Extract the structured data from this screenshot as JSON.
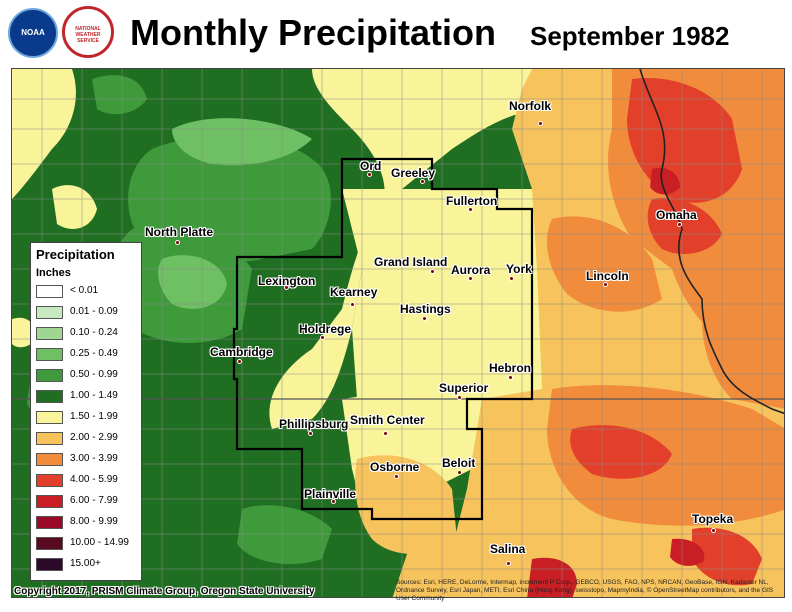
{
  "header": {
    "title": "Monthly Precipitation",
    "subtitle": "September 1982",
    "noaa_logo_text": "NOAA",
    "nws_logo_text": "NATIONAL WEATHER SERVICE"
  },
  "legend": {
    "title": "Precipitation",
    "units": "Inches",
    "items": [
      {
        "label": "< 0.01",
        "color": "#ffffff"
      },
      {
        "label": "0.01 - 0.09",
        "color": "#c8e8c0"
      },
      {
        "label": "0.10 - 0.24",
        "color": "#9fd692"
      },
      {
        "label": "0.25 - 0.49",
        "color": "#6fbf64"
      },
      {
        "label": "0.50 - 0.99",
        "color": "#3e9a3a"
      },
      {
        "label": "1.00 - 1.49",
        "color": "#1f6e22"
      },
      {
        "label": "1.50 - 1.99",
        "color": "#f9f49a"
      },
      {
        "label": "2.00 - 2.99",
        "color": "#f7c35c"
      },
      {
        "label": "3.00 - 3.99",
        "color": "#f08c3c"
      },
      {
        "label": "4.00 - 5.99",
        "color": "#e2402a"
      },
      {
        "label": "6.00 - 7.99",
        "color": "#c81e24"
      },
      {
        "label": "8.00 - 9.99",
        "color": "#9a0a28"
      },
      {
        "label": "10.00 - 14.99",
        "color": "#5a0a20"
      },
      {
        "label": "15.00+",
        "color": "#2e0a2a"
      }
    ]
  },
  "cities": [
    {
      "name": "Norfolk"
    },
    {
      "name": "Ord"
    },
    {
      "name": "Greeley"
    },
    {
      "name": "Fullerton"
    },
    {
      "name": "North Platte"
    },
    {
      "name": "Omaha"
    },
    {
      "name": "Grand Island"
    },
    {
      "name": "Aurora"
    },
    {
      "name": "York"
    },
    {
      "name": "Lexington"
    },
    {
      "name": "Lincoln"
    },
    {
      "name": "Kearney"
    },
    {
      "name": "Hastings"
    },
    {
      "name": "Holdrege"
    },
    {
      "name": "Cambridge"
    },
    {
      "name": "Hebron"
    },
    {
      "name": "Superior"
    },
    {
      "name": "Phillipsburg"
    },
    {
      "name": "Smith Center"
    },
    {
      "name": "Osborne"
    },
    {
      "name": "Beloit"
    },
    {
      "name": "Plainville"
    },
    {
      "name": "Topeka"
    },
    {
      "name": "Salina"
    }
  ],
  "footer": {
    "copyright": "Copyright 2017, PRISM Climate Group, Oregon State University",
    "sources": "Sources: Esri, HERE, DeLorme, Intermap, increment P Corp., GEBCO, USGS, FAO, NPS, NRCAN, GeoBase, IGN, Kadaster NL, Ordnance Survey, Esri Japan, METI, Esri China (Hong Kong), swisstopo, MapmyIndia, © OpenStreetMap contributors, and the GIS User Community"
  },
  "colors": {
    "green_dark": "#1f6e22",
    "green_mid": "#3e9a3a",
    "green_light": "#6fbf64",
    "yellow": "#f9f49a",
    "light_orange": "#f7c35c",
    "orange": "#f08c3c",
    "red_orange": "#e2402a",
    "red": "#c81e24"
  }
}
